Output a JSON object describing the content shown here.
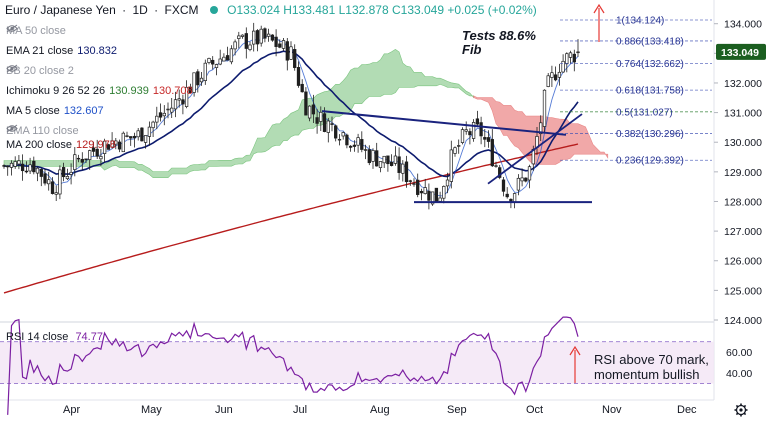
{
  "header": {
    "symbol": "Euro / Japanese Yen",
    "timeframe": "1D",
    "exchange": "FXCM",
    "ohlc_text": "O133.024 H133.481 L132.878 C133.049 +0.025 (+0.02%)"
  },
  "indicators": [
    {
      "label": "MA 50 close",
      "value": "",
      "color": "#b2b5be",
      "hidden": true
    },
    {
      "label": "EMA 21 close",
      "value": "130.832",
      "color": "#0d1b6e",
      "hidden": false
    },
    {
      "label": "BB 20 close 2",
      "value": "",
      "color": "#b2b5be",
      "hidden": true
    },
    {
      "label": "Ichimoku 9 26 52 26",
      "value": "130.939",
      "value2": "130.708",
      "color": "#2e7d32",
      "color2": "#c62828",
      "hidden": false
    },
    {
      "label": "MA 5 close",
      "value": "132.607",
      "color": "#1e50c8",
      "hidden": false
    },
    {
      "label": "EMA 110 close",
      "value": "",
      "color": "#b2b5be",
      "hidden": true
    },
    {
      "label": "MA 200 close",
      "value": "129.978",
      "color": "#b71c1c",
      "hidden": false
    }
  ],
  "annotations": {
    "fib_note": [
      "Tests 88.6%",
      "Fib"
    ],
    "rsi_note": [
      "RSI above 70 mark,",
      "momentum bullish"
    ]
  },
  "rsi": {
    "label": "RSI 14 close",
    "value": "74.77",
    "color": "#7b1fa2"
  },
  "price_tag": "133.049",
  "colors": {
    "up": "#26a69a",
    "down": "#ef5350",
    "candle": "#1f1f1f",
    "cloud_bull": "#a5d6a7",
    "cloud_bear": "#ef9a9a"
  },
  "chart_data": {
    "type": "candlestick",
    "y_ticks": [
      "134.000",
      "133.000",
      "132.000",
      "131.000",
      "130.000",
      "129.000",
      "128.000",
      "127.000",
      "126.000",
      "125.000",
      "124.000"
    ],
    "ylim": [
      124,
      134.8
    ],
    "x_ticks": [
      "Apr",
      "May",
      "Jun",
      "Jul",
      "Aug",
      "Sep",
      "Oct",
      "Nov",
      "Dec"
    ],
    "fib_levels": [
      {
        "ratio": "1",
        "price": 134.124
      },
      {
        "ratio": "0.886",
        "price": 133.418
      },
      {
        "ratio": "0.764",
        "price": 132.662
      },
      {
        "ratio": "0.618",
        "price": 131.758
      },
      {
        "ratio": "0.5",
        "price": 131.027
      },
      {
        "ratio": "0.382",
        "price": 130.296
      },
      {
        "ratio": "0.236",
        "price": 129.392
      }
    ],
    "rsi_ticks": [
      "60.00",
      "40.00"
    ],
    "rsi_bands": [
      70,
      30
    ]
  }
}
